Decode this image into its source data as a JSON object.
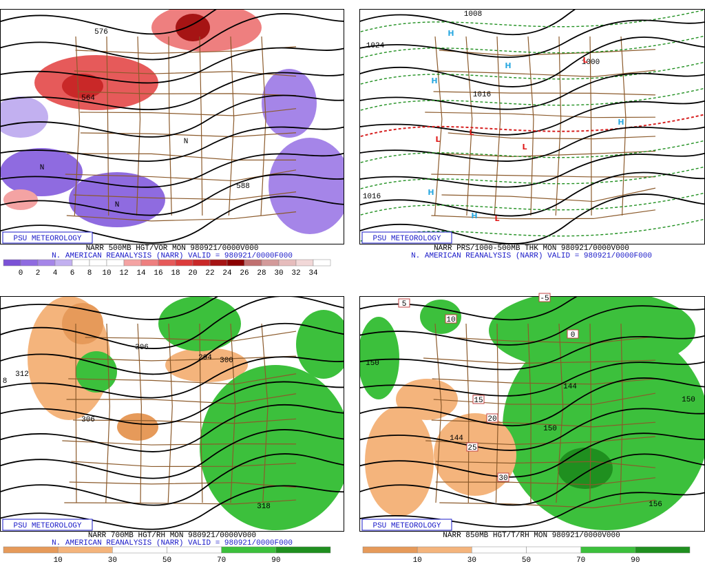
{
  "panels": [
    {
      "psu": "PSU METEOROLOGY",
      "caption": [
        "NARR 500MB HGT/VOR MON 980921/0000V000",
        "N. AMERICAN REANALYSIS (NARR) VALID = 980921/0000F000"
      ],
      "map_labels": [
        "576",
        "564",
        "588",
        "N",
        "N",
        "N"
      ],
      "colorbar": {
        "labels": [
          0,
          2,
          4,
          6,
          8,
          10,
          12,
          14,
          16,
          18,
          20,
          22,
          24,
          26,
          28,
          30,
          32,
          34
        ],
        "colors": [
          "#7b52d6",
          "#8f6be0",
          "#a585e8",
          "#c2b0f0",
          "#ffffff",
          "#ffffff",
          "#ffffff",
          "#f4a3a3",
          "#ee7f7f",
          "#e65a5a",
          "#dc3c3c",
          "#c92828",
          "#a61414",
          "#8b0000",
          "#c07070",
          "#d39a9a",
          "#e6bcbc",
          "#f2d8d8",
          "#ffffff"
        ]
      }
    },
    {
      "psu": "PSU METEOROLOGY",
      "caption": [
        "NARR PRS/1000-500MB THK MON 980921/0000V000",
        "N. AMERICAN REANALYSIS (NARR) VALID = 980921/0000F000"
      ],
      "map_labels": [
        "1024",
        "1016",
        "1008",
        "1016",
        "1000",
        "H",
        "H",
        "H",
        "H",
        "H",
        "H",
        "L",
        "L",
        "L",
        "L",
        "L"
      ]
    },
    {
      "psu": "PSU METEOROLOGY",
      "caption": [
        "NARR 700MB HGT/RH MON 980921/0000V000",
        "N. AMERICAN REANALYSIS (NARR) VALID = 980921/0000F000"
      ],
      "map_labels": [
        "312",
        "306",
        "306",
        "300",
        "294",
        "318",
        "8"
      ],
      "colorbar": {
        "labels": [
          10,
          30,
          50,
          70,
          90
        ],
        "colors": [
          "#e69a5a",
          "#f4b47c",
          "#ffffff",
          "#ffffff",
          "#3cc03c",
          "#1f8f1f"
        ]
      }
    },
    {
      "psu": "PSU METEOROLOGY",
      "caption": [
        "NARR 850MB HGT/T/RH MON 980921/0000V000"
      ],
      "map_labels": [
        "150",
        "144",
        "150",
        "144",
        "156",
        "150"
      ],
      "map_boxes": [
        "5",
        "10",
        "15",
        "20",
        "25",
        "30",
        "-5",
        "0"
      ],
      "colorbar": {
        "labels": [
          10,
          30,
          50,
          70,
          90
        ],
        "colors": [
          "#e69a5a",
          "#f4b47c",
          "#ffffff",
          "#ffffff",
          "#3cc03c",
          "#1f8f1f"
        ]
      }
    }
  ]
}
